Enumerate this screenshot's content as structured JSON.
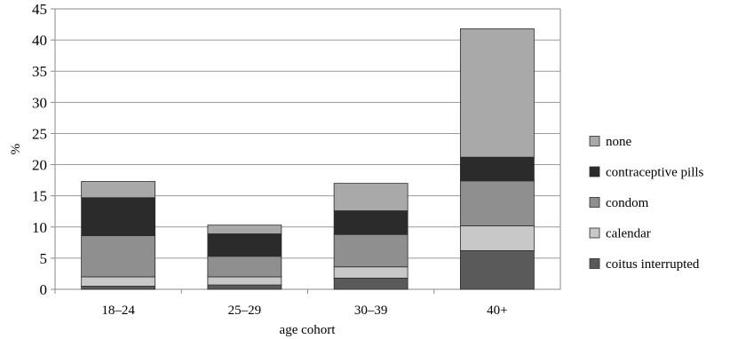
{
  "chart_data": {
    "type": "bar",
    "stacked": true,
    "categories": [
      "18–24",
      "25–29",
      "30–39",
      "40+"
    ],
    "series": [
      {
        "name": "coitus interrupted",
        "color": "#5a5a5a",
        "values": [
          0.5,
          0.7,
          1.8,
          6.2
        ]
      },
      {
        "name": "calendar",
        "color": "#c8c8c8",
        "values": [
          1.5,
          1.3,
          1.8,
          4.0
        ]
      },
      {
        "name": "condom",
        "color": "#8f8f8f",
        "values": [
          6.6,
          3.3,
          5.2,
          7.2
        ]
      },
      {
        "name": "contraceptive pills",
        "color": "#2b2b2b",
        "values": [
          6.1,
          3.6,
          3.8,
          3.8
        ]
      },
      {
        "name": "none",
        "color": "#a9a9a9",
        "values": [
          2.6,
          1.4,
          4.4,
          20.6
        ]
      }
    ],
    "xlabel": "age cohort",
    "ylabel": "%",
    "ylim": [
      0,
      45
    ],
    "yticks": [
      0,
      5,
      10,
      15,
      20,
      25,
      30,
      35,
      40,
      45
    ],
    "grid": "horizontal",
    "legend_position": "right"
  }
}
